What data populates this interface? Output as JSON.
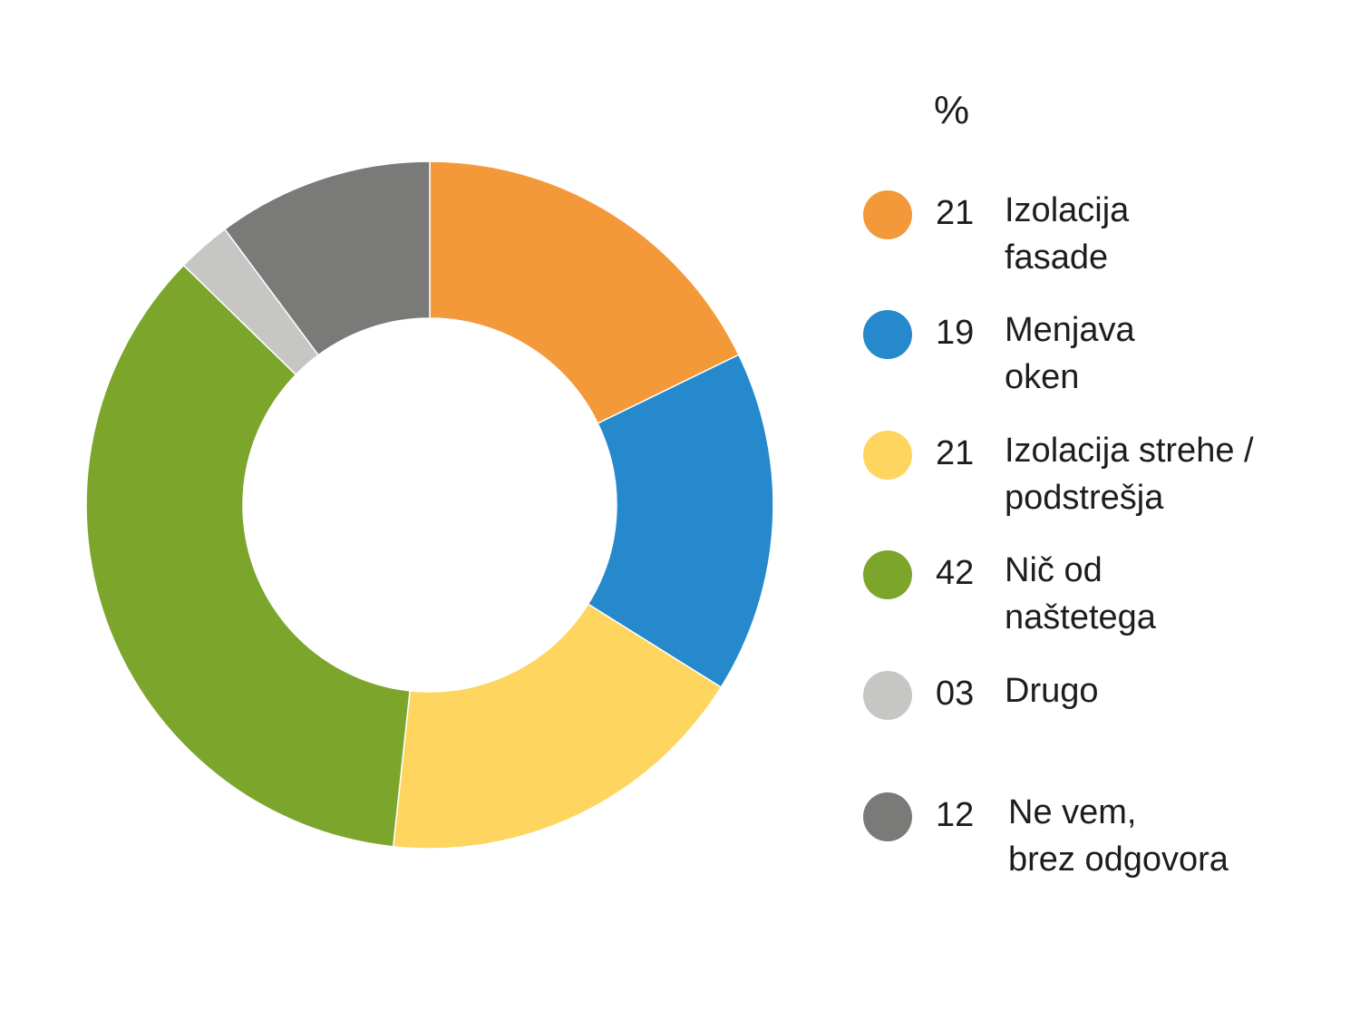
{
  "chart_data": {
    "type": "pie",
    "variant": "donut",
    "unit": "%",
    "slices": [
      {
        "label": "Izolacija\nfasade",
        "value": 21,
        "display": "21",
        "color": "#f39939"
      },
      {
        "label": "Menjava\noken",
        "value": 19,
        "display": "19",
        "color": "#2589cb"
      },
      {
        "label": "Izolacija strehe /\npodstrešja",
        "value": 21,
        "display": "21",
        "color": "#fdd55f"
      },
      {
        "label": "Nič od\nnaštetega",
        "value": 42,
        "display": "42",
        "color": "#7ca52c"
      },
      {
        "label": "Drugo",
        "value": 3,
        "display": "03",
        "color": "#c6c6c5"
      },
      {
        "label": "Ne vem,\nbrez odgovora",
        "value": 12,
        "display": "12",
        "color": "#7a7a79"
      }
    ],
    "legend_position": "right"
  }
}
